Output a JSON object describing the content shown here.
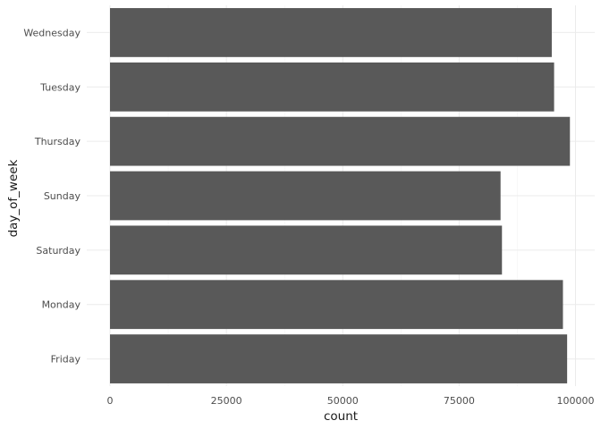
{
  "chart_data": {
    "type": "bar",
    "orientation": "horizontal",
    "categories": [
      "Friday",
      "Monday",
      "Saturday",
      "Sunday",
      "Thursday",
      "Tuesday",
      "Wednesday"
    ],
    "values": [
      98200,
      97300,
      84200,
      83900,
      98800,
      95400,
      94900
    ],
    "xlabel": "count",
    "ylabel": "day_of_week",
    "xlim": [
      0,
      102000
    ],
    "x_ticks": [
      0,
      25000,
      50000,
      75000,
      100000
    ],
    "x_tick_labels": [
      "0",
      "25000",
      "50000",
      "75000",
      "100000"
    ],
    "grid": true,
    "bar_color": "#595959",
    "grid_major_color": "#ebebeb",
    "grid_minor_color": "#f4f4f4"
  }
}
